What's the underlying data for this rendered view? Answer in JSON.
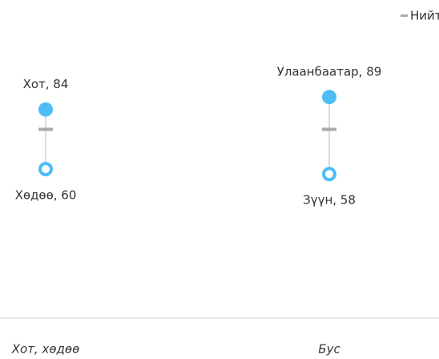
{
  "chart_data": {
    "type": "dumbbell",
    "categories": [
      "Хот, хөдөө",
      "Бус"
    ],
    "series": [
      {
        "color": "#4fbdf5",
        "values": [
          84,
          89
        ],
        "value_labels": [
          "Хот, 84",
          "Улаанбаатар, 89"
        ]
      },
      {
        "color": "#4fbdf5",
        "values": [
          60,
          58
        ],
        "value_labels": [
          "Хөдөө, 60",
          "Зүүн, 58"
        ]
      },
      {
        "name": "Нийт",
        "color": "#aaaaaa",
        "values": [
          76,
          76
        ]
      }
    ],
    "ylim": [
      0,
      120
    ],
    "legend": "top-right"
  }
}
